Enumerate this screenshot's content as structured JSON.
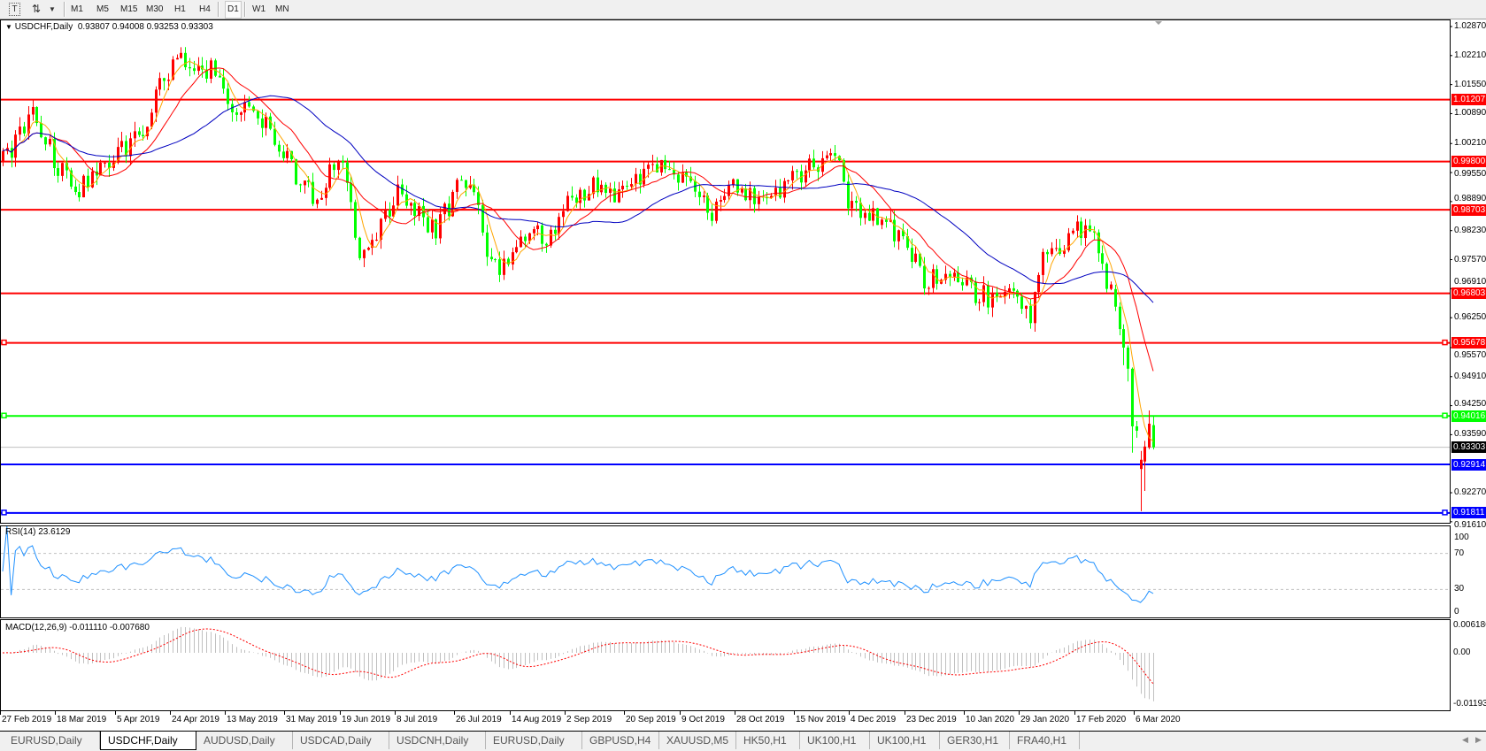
{
  "toolbar": {
    "icons": [
      "text-tool-icon",
      "drawing-tools-icon",
      "dropdown-arrow-icon"
    ],
    "timeframes": [
      "M1",
      "M5",
      "M15",
      "M30",
      "H1",
      "H4",
      "D1",
      "W1",
      "MN"
    ],
    "active_timeframe": "D1"
  },
  "chart": {
    "title": "USDCHF,Daily",
    "ohlc": "0.93807 0.94008 0.93253 0.93303",
    "up_color": "#ff0000",
    "down_color": "#00ff00",
    "bid": "0.93303"
  },
  "price_axis": [
    "1.02870",
    "1.02210",
    "1.01550",
    "1.00890",
    "1.00210",
    "0.99550",
    "0.98890",
    "0.98230",
    "0.97570",
    "0.96910",
    "0.96250",
    "0.95570",
    "0.94910",
    "0.94250",
    "0.93590",
    "0.92270",
    "0.91610"
  ],
  "hlines": [
    {
      "price": "1.01207",
      "color": "#ff0000",
      "markers": false
    },
    {
      "price": "0.99800",
      "color": "#ff0000",
      "markers": false
    },
    {
      "price": "0.98703",
      "color": "#ff0000",
      "markers": false
    },
    {
      "price": "0.96803",
      "color": "#ff0000",
      "markers": false
    },
    {
      "price": "0.95678",
      "color": "#ff0000",
      "markers": true
    },
    {
      "price": "0.94016",
      "color": "#00ff00",
      "markers": true
    },
    {
      "price": "0.92914",
      "color": "#0000ff",
      "markers": false
    },
    {
      "price": "0.91811",
      "color": "#0000ff",
      "markers": true
    }
  ],
  "rsi": {
    "label": "RSI(14) 23.6129",
    "levels": [
      "100",
      "70",
      "30",
      "0"
    ],
    "color": "#1e90ff"
  },
  "macd": {
    "label": "MACD(12,26,9) -0.011110 -0.007680",
    "axis": [
      "0.006186",
      "0.00",
      "-0.011934"
    ],
    "hist_color": "#c0c0c0",
    "signal_color": "#ff0000"
  },
  "date_axis": [
    "27 Feb 2019",
    "18 Mar 2019",
    "5 Apr 2019",
    "24 Apr 2019",
    "13 May 2019",
    "31 May 2019",
    "19 Jun 2019",
    "8 Jul 2019",
    "26 Jul 2019",
    "14 Aug 2019",
    "2 Sep 2019",
    "20 Sep 2019",
    "9 Oct 2019",
    "28 Oct 2019",
    "15 Nov 2019",
    "4 Dec 2019",
    "23 Dec 2019",
    "10 Jan 2020",
    "29 Jan 2020",
    "17 Feb 2020",
    "6 Mar 2020"
  ],
  "tabs": [
    "EURUSD,Daily",
    "USDCHF,Daily",
    "AUDUSD,Daily",
    "USDCAD,Daily",
    "USDCNH,Daily",
    "EURUSD,Daily",
    "GBPUSD,H4",
    "XAUUSD,M5",
    "HK50,H1",
    "UK100,H1",
    "UK100,H1",
    "GER30,H1",
    "FRA40,H1"
  ],
  "active_tab": 1,
  "chart_data": {
    "type": "candlestick",
    "symbol": "USDCHF",
    "timeframe": "Daily",
    "ylim": [
      0.9161,
      1.0287
    ],
    "moving_averages": [
      {
        "period": 5,
        "color": "#ffa500"
      },
      {
        "period": 13,
        "color": "#ff0000"
      },
      {
        "period": 34,
        "color": "#0000c0"
      }
    ],
    "approx_closes": [
      [
        "2019-02-27",
        0.998
      ],
      [
        "2019-03-05",
        1.004
      ],
      [
        "2019-03-08",
        1.009
      ],
      [
        "2019-03-18",
        0.997
      ],
      [
        "2019-03-22",
        0.991
      ],
      [
        "2019-04-05",
        1.0
      ],
      [
        "2019-04-15",
        1.005
      ],
      [
        "2019-04-22",
        1.018
      ],
      [
        "2019-04-26",
        1.022
      ],
      [
        "2019-05-01",
        1.017
      ],
      [
        "2019-05-08",
        1.02
      ],
      [
        "2019-05-13",
        1.011
      ],
      [
        "2019-05-20",
        1.009
      ],
      [
        "2019-05-24",
        1.006
      ],
      [
        "2019-05-31",
        1.0
      ],
      [
        "2019-06-05",
        0.992
      ],
      [
        "2019-06-11",
        0.99
      ],
      [
        "2019-06-14",
        0.996
      ],
      [
        "2019-06-19",
        0.998
      ],
      [
        "2019-06-25",
        0.976
      ],
      [
        "2019-06-28",
        0.978
      ],
      [
        "2019-07-03",
        0.985
      ],
      [
        "2019-07-08",
        0.992
      ],
      [
        "2019-07-12",
        0.986
      ],
      [
        "2019-07-19",
        0.983
      ],
      [
        "2019-07-24",
        0.988
      ],
      [
        "2019-07-26",
        0.994
      ],
      [
        "2019-08-01",
        0.992
      ],
      [
        "2019-08-06",
        0.975
      ],
      [
        "2019-08-12",
        0.974
      ],
      [
        "2019-08-14",
        0.978
      ],
      [
        "2019-08-20",
        0.983
      ],
      [
        "2019-08-26",
        0.979
      ],
      [
        "2019-08-30",
        0.988
      ],
      [
        "2019-09-10",
        0.992
      ],
      [
        "2019-09-17",
        0.99
      ],
      [
        "2019-09-27",
        0.995
      ],
      [
        "2019-10-01",
        0.998
      ],
      [
        "2019-10-09",
        0.994
      ],
      [
        "2019-10-18",
        0.986
      ],
      [
        "2019-10-28",
        0.993
      ],
      [
        "2019-11-04",
        0.988
      ],
      [
        "2019-11-15",
        0.995
      ],
      [
        "2019-11-22",
        0.998
      ],
      [
        "2019-11-29",
        0.998
      ],
      [
        "2019-12-03",
        0.989
      ],
      [
        "2019-12-10",
        0.986
      ],
      [
        "2019-12-18",
        0.982
      ],
      [
        "2019-12-23",
        0.979
      ],
      [
        "2019-12-27",
        0.971
      ],
      [
        "2020-01-03",
        0.972
      ],
      [
        "2020-01-08",
        0.97
      ],
      [
        "2020-01-17",
        0.967
      ],
      [
        "2020-01-28",
        0.969
      ],
      [
        "2020-01-31",
        0.963
      ],
      [
        "2020-02-05",
        0.975
      ],
      [
        "2020-02-10",
        0.978
      ],
      [
        "2020-02-14",
        0.981
      ],
      [
        "2020-02-19",
        0.984
      ],
      [
        "2020-02-21",
        0.98
      ],
      [
        "2020-02-25",
        0.974
      ],
      [
        "2020-02-27",
        0.968
      ]
    ],
    "recent_bars": [
      {
        "date": "2020-02-28",
        "o": 0.969,
        "h": 0.97,
        "l": 0.964,
        "c": 0.965
      },
      {
        "date": "2020-03-02",
        "o": 0.965,
        "h": 0.966,
        "l": 0.9585,
        "c": 0.9599
      },
      {
        "date": "2020-03-03",
        "o": 0.9599,
        "h": 0.961,
        "l": 0.9517,
        "c": 0.9557
      },
      {
        "date": "2020-03-04",
        "o": 0.9557,
        "h": 0.9562,
        "l": 0.948,
        "c": 0.9509
      },
      {
        "date": "2020-03-05",
        "o": 0.9509,
        "h": 0.9512,
        "l": 0.9318,
        "c": 0.9378
      },
      {
        "date": "2020-03-06",
        "o": 0.9378,
        "h": 0.939,
        "l": 0.9352,
        "c": 0.9368
      },
      {
        "date": "2020-03-09",
        "o": 0.9281,
        "h": 0.9322,
        "l": 0.9185,
        "c": 0.9302
      },
      {
        "date": "2020-03-10",
        "o": 0.9298,
        "h": 0.9345,
        "l": 0.9231,
        "c": 0.9332
      },
      {
        "date": "2020-03-11",
        "o": 0.933,
        "h": 0.9414,
        "l": 0.9326,
        "c": 0.9384
      },
      {
        "date": "2020-03-12",
        "o": 0.93807,
        "h": 0.94008,
        "l": 0.93253,
        "c": 0.93303
      }
    ]
  }
}
